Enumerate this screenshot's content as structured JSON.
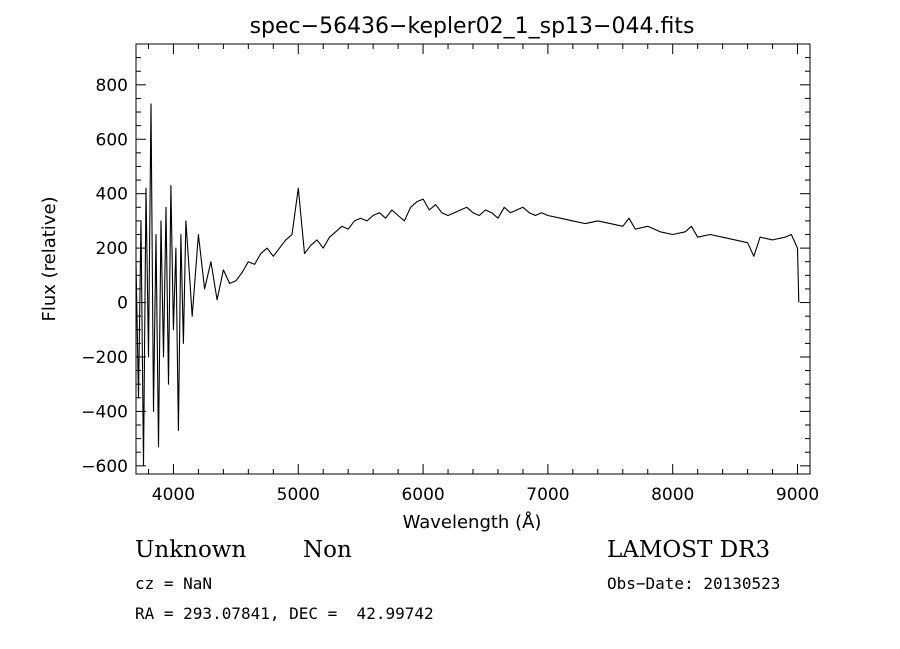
{
  "chart_data": {
    "type": "line",
    "title": "spec−56436−kepler02_1_sp13−044.fits",
    "xlabel": "Wavelength (Å)",
    "ylabel": "Flux (relative)",
    "xlim": [
      3700,
      9100
    ],
    "ylim": [
      -630,
      950
    ],
    "xticks": [
      4000,
      5000,
      6000,
      7000,
      8000,
      9000
    ],
    "yticks": [
      -600,
      -400,
      -200,
      0,
      200,
      400,
      600,
      800
    ],
    "grid": false,
    "series": [
      {
        "x": [
          3700,
          3720,
          3740,
          3760,
          3780,
          3800,
          3820,
          3840,
          3860,
          3880,
          3900,
          3920,
          3940,
          3960,
          3980,
          4000,
          4020,
          4040,
          4060,
          4080,
          4100,
          4150,
          4200,
          4250,
          4300,
          4350,
          4400,
          4450,
          4500,
          4550,
          4600,
          4650,
          4700,
          4750,
          4800,
          4850,
          4900,
          4950,
          5000,
          5050,
          5100,
          5150,
          5200,
          5250,
          5300,
          5350,
          5400,
          5450,
          5500,
          5550,
          5600,
          5650,
          5700,
          5750,
          5800,
          5850,
          5900,
          5950,
          6000,
          6050,
          6100,
          6150,
          6200,
          6250,
          6300,
          6350,
          6400,
          6450,
          6500,
          6550,
          6600,
          6650,
          6700,
          6750,
          6800,
          6850,
          6900,
          6950,
          7000,
          7100,
          7200,
          7300,
          7400,
          7500,
          7600,
          7650,
          7700,
          7800,
          7900,
          8000,
          8100,
          8150,
          8200,
          8300,
          8400,
          8500,
          8600,
          8650,
          8700,
          8800,
          8900,
          8950,
          9000,
          9010
        ],
        "values": [
          150,
          -350,
          300,
          -600,
          420,
          -200,
          730,
          -400,
          250,
          -530,
          300,
          -200,
          350,
          -300,
          430,
          -100,
          200,
          -470,
          250,
          -150,
          300,
          -50,
          250,
          50,
          150,
          10,
          120,
          70,
          80,
          110,
          150,
          140,
          180,
          200,
          170,
          200,
          230,
          250,
          420,
          180,
          210,
          230,
          200,
          240,
          260,
          280,
          270,
          300,
          310,
          300,
          320,
          330,
          310,
          340,
          320,
          300,
          350,
          370,
          380,
          340,
          360,
          330,
          320,
          330,
          340,
          350,
          330,
          320,
          340,
          330,
          310,
          350,
          330,
          340,
          350,
          330,
          320,
          330,
          320,
          310,
          300,
          290,
          300,
          290,
          280,
          310,
          270,
          280,
          260,
          250,
          260,
          280,
          240,
          250,
          240,
          230,
          220,
          170,
          240,
          230,
          240,
          250,
          200,
          0
        ]
      }
    ]
  },
  "info": {
    "object_type": "Unknown",
    "object_subclass": "Non",
    "survey": "LAMOST DR3",
    "cz": "cz = NaN",
    "obs_date": "Obs−Date: 20130523",
    "coords": "RA = 293.07841, DEC =  42.99742"
  }
}
